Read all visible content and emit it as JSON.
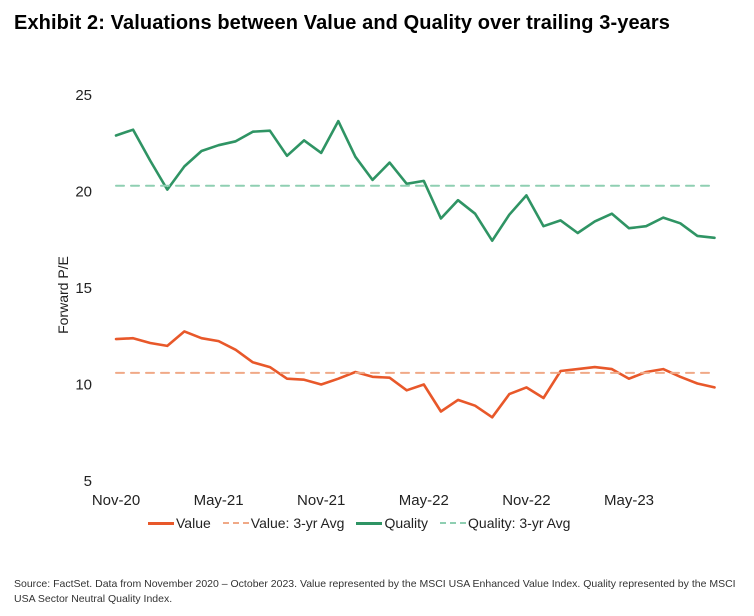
{
  "title": "Exhibit 2: Valuations between Value and Quality over trailing 3-years",
  "source": "Source: FactSet. Data from November 2020 – October 2023. Value represented by the MSCI USA Enhanced Value Index. Quality represented by the MSCI USA Sector Neutral Quality Index.",
  "chart_data": {
    "type": "line",
    "ylabel": "Forward P/E",
    "xlabel": "",
    "ylim": [
      5,
      25
    ],
    "yticks": [
      5,
      10,
      15,
      20,
      25
    ],
    "x_start": "Nov-20",
    "x_tick_labels": [
      "Nov-20",
      "May-21",
      "Nov-21",
      "May-22",
      "Nov-22",
      "May-23"
    ],
    "x": [
      "Nov-20",
      "Dec-20",
      "Jan-21",
      "Feb-21",
      "Mar-21",
      "Apr-21",
      "May-21",
      "Jun-21",
      "Jul-21",
      "Aug-21",
      "Sep-21",
      "Oct-21",
      "Nov-21",
      "Dec-21",
      "Jan-22",
      "Feb-22",
      "Mar-22",
      "Apr-22",
      "May-22",
      "Jun-22",
      "Jul-22",
      "Aug-22",
      "Sep-22",
      "Oct-22",
      "Nov-22",
      "Dec-22",
      "Jan-23",
      "Feb-23",
      "Mar-23",
      "Apr-23",
      "May-23",
      "Jun-23",
      "Jul-23",
      "Aug-23",
      "Sep-23",
      "Oct-23"
    ],
    "grid": false,
    "legend_position": "bottom",
    "series": [
      {
        "name": "Value",
        "color": "#e8582a",
        "style": "solid",
        "values": [
          12.35,
          12.4,
          12.15,
          12.0,
          12.75,
          12.4,
          12.25,
          11.8,
          11.15,
          10.9,
          10.3,
          10.25,
          10.0,
          10.3,
          10.65,
          10.4,
          10.35,
          9.7,
          10.0,
          8.6,
          9.2,
          8.9,
          8.3,
          9.5,
          9.85,
          9.3,
          10.7,
          10.8,
          10.9,
          10.8,
          10.3,
          10.65,
          10.8,
          10.4,
          10.05,
          9.85
        ]
      },
      {
        "name": "Value: 3-yr Avg",
        "color": "#f0a987",
        "style": "dashed",
        "values": [
          10.6,
          10.6,
          10.6,
          10.6,
          10.6,
          10.6,
          10.6,
          10.6,
          10.6,
          10.6,
          10.6,
          10.6,
          10.6,
          10.6,
          10.6,
          10.6,
          10.6,
          10.6,
          10.6,
          10.6,
          10.6,
          10.6,
          10.6,
          10.6,
          10.6,
          10.6,
          10.6,
          10.6,
          10.6,
          10.6,
          10.6,
          10.6,
          10.6,
          10.6,
          10.6,
          10.6
        ]
      },
      {
        "name": "Quality",
        "color": "#2f9464",
        "style": "solid",
        "values": [
          22.9,
          23.2,
          21.6,
          20.1,
          21.3,
          22.1,
          22.4,
          22.6,
          23.1,
          23.15,
          21.85,
          22.65,
          22.0,
          23.65,
          21.8,
          20.6,
          21.5,
          20.4,
          20.55,
          18.6,
          19.55,
          18.85,
          17.45,
          18.8,
          19.8,
          18.2,
          18.5,
          17.85,
          18.45,
          18.85,
          18.1,
          18.2,
          18.65,
          18.35,
          17.7,
          17.6
        ]
      },
      {
        "name": "Quality: 3-yr Avg",
        "color": "#8fcfb2",
        "style": "dashed",
        "values": [
          20.3,
          20.3,
          20.3,
          20.3,
          20.3,
          20.3,
          20.3,
          20.3,
          20.3,
          20.3,
          20.3,
          20.3,
          20.3,
          20.3,
          20.3,
          20.3,
          20.3,
          20.3,
          20.3,
          20.3,
          20.3,
          20.3,
          20.3,
          20.3,
          20.3,
          20.3,
          20.3,
          20.3,
          20.3,
          20.3,
          20.3,
          20.3,
          20.3,
          20.3,
          20.3,
          20.3
        ]
      }
    ]
  }
}
